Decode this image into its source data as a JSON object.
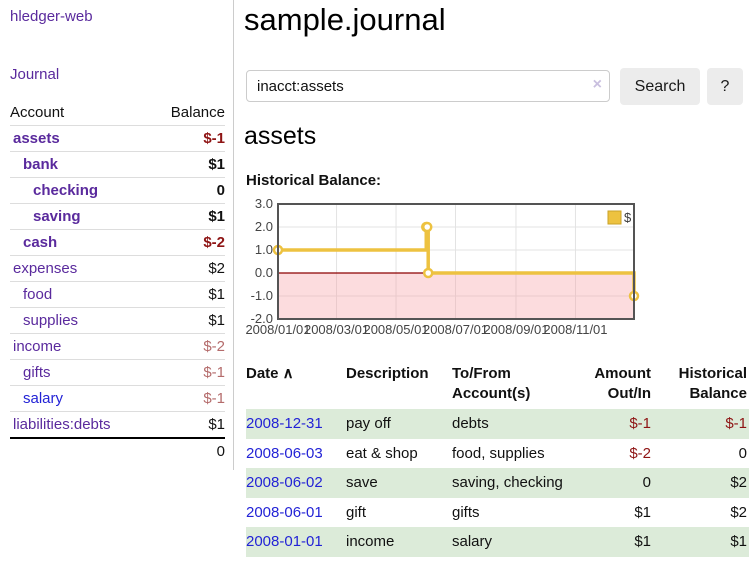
{
  "brand": "hledger-web",
  "nav": {
    "journal": "Journal"
  },
  "icons": {
    "sort_asc": "∧",
    "clear": "×"
  },
  "colors": {
    "link_purple": "#5a2a9d",
    "link_blue": "#2323d6",
    "neg_strong": "#8e1414",
    "neg_soft": "#b46b6b",
    "stripe_green": "#dcebd9",
    "chart_line": "#edc240",
    "chart_zero_line": "#8b0000",
    "chart_neg_fill": "rgba(245,155,160,0.35)"
  },
  "sidebar": {
    "header": {
      "account": "Account",
      "balance": "Balance"
    },
    "accounts": [
      {
        "name": "assets",
        "balance": "$-1",
        "indent": 1,
        "bold": true,
        "balance_class": "neg-strong",
        "name_class": "purple-link"
      },
      {
        "name": "bank",
        "balance": "$1",
        "indent": 2,
        "bold": true,
        "balance_class": "",
        "name_class": "purple-link"
      },
      {
        "name": "checking",
        "balance": "0",
        "indent": 3,
        "bold": true,
        "balance_class": "",
        "name_class": "purple-link"
      },
      {
        "name": "saving",
        "balance": "$1",
        "indent": 3,
        "bold": true,
        "balance_class": "",
        "name_class": "purple-link"
      },
      {
        "name": "cash",
        "balance": "$-2",
        "indent": 2,
        "bold": true,
        "balance_class": "neg-strong",
        "name_class": "purple-link"
      },
      {
        "name": "expenses",
        "balance": "$2",
        "indent": 1,
        "bold": false,
        "balance_class": "",
        "name_class": "purple-link"
      },
      {
        "name": "food",
        "balance": "$1",
        "indent": 2,
        "bold": false,
        "balance_class": "",
        "name_class": "purple-link"
      },
      {
        "name": "supplies",
        "balance": "$1",
        "indent": 2,
        "bold": false,
        "balance_class": "",
        "name_class": "purple-link"
      },
      {
        "name": "income",
        "balance": "$-2",
        "indent": 1,
        "bold": false,
        "balance_class": "neg-soft",
        "name_class": "purple-link"
      },
      {
        "name": "gifts",
        "balance": "$-1",
        "indent": 2,
        "bold": false,
        "balance_class": "neg-soft",
        "name_class": "purple-link"
      },
      {
        "name": "salary",
        "balance": "$-1",
        "indent": 2,
        "bold": false,
        "balance_class": "neg-soft",
        "name_class": "blue-link"
      },
      {
        "name": "liabilities:debts",
        "balance": "$1",
        "indent": 1,
        "bold": false,
        "balance_class": "",
        "name_class": "purple-link"
      }
    ],
    "total": "0"
  },
  "main": {
    "title": "sample.journal",
    "search": {
      "value": "inacct:assets",
      "button": "Search",
      "help_button": "?"
    },
    "account_heading": "assets",
    "chart_label": "Historical Balance:"
  },
  "chart_data": {
    "type": "line",
    "title": "Historical Balance",
    "step": true,
    "series": [
      {
        "name": "$",
        "color": "#edc240",
        "points": [
          [
            "2008-01-01",
            1
          ],
          [
            "2008-06-01",
            2
          ],
          [
            "2008-06-02",
            2
          ],
          [
            "2008-06-03",
            0
          ],
          [
            "2008-12-31",
            -1
          ]
        ]
      }
    ],
    "x_start": "2008-01-01",
    "x_range_days": 365,
    "x_ticks": [
      {
        "label": "2008/01/01",
        "day": 0
      },
      {
        "label": "2008/03/01",
        "day": 60
      },
      {
        "label": "2008/05/01",
        "day": 121
      },
      {
        "label": "2008/07/01",
        "day": 182
      },
      {
        "label": "2008/09/01",
        "day": 244
      },
      {
        "label": "2008/11/01",
        "day": 305
      }
    ],
    "y_ticks": [
      3.0,
      2.0,
      1.0,
      0.0,
      -1.0,
      -2.0
    ],
    "ylim": [
      -2,
      3
    ],
    "grid": true,
    "legend": {
      "label": "$",
      "position": "top-right"
    },
    "negative_region_below": 0
  },
  "transactions": {
    "columns": [
      "Date",
      "Description",
      "To/From Account(s)",
      "Amount Out/In",
      "Historical Balance"
    ],
    "rows": [
      {
        "date": "2008-12-31",
        "description": "pay off",
        "accounts": "debts",
        "amount": "$-1",
        "amount_neg": true,
        "balance": "$-1",
        "balance_neg": true
      },
      {
        "date": "2008-06-03",
        "description": "eat & shop",
        "accounts": "food, supplies",
        "amount": "$-2",
        "amount_neg": true,
        "balance": "0",
        "balance_neg": false
      },
      {
        "date": "2008-06-02",
        "description": "save",
        "accounts": "saving, checking",
        "amount": "0",
        "amount_neg": false,
        "balance": "$2",
        "balance_neg": false
      },
      {
        "date": "2008-06-01",
        "description": "gift",
        "accounts": "gifts",
        "amount": "$1",
        "amount_neg": false,
        "balance": "$2",
        "balance_neg": false
      },
      {
        "date": "2008-01-01",
        "description": "income",
        "accounts": "salary",
        "amount": "$1",
        "amount_neg": false,
        "balance": "$1",
        "balance_neg": false
      }
    ]
  }
}
